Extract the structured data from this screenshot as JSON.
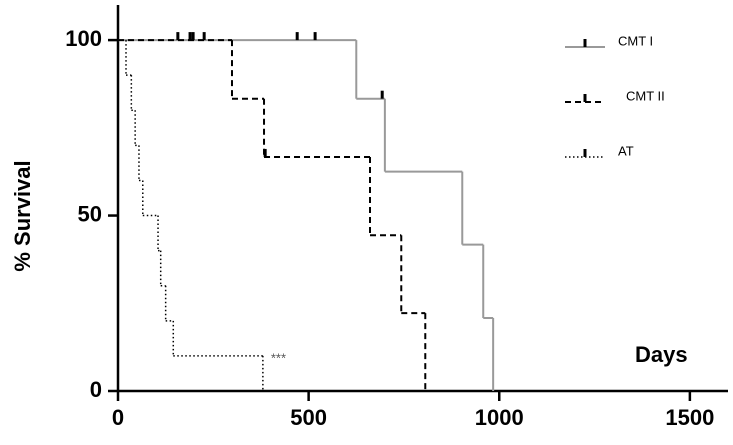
{
  "chart_data": {
    "type": "step",
    "y_label": "% Survival",
    "x_label": "Days",
    "annotation": "***",
    "xlim": [
      0,
      1600
    ],
    "ylim": [
      0,
      110
    ],
    "xticks": [
      0,
      500,
      1000,
      1500
    ],
    "yticks": [
      0,
      50,
      100
    ],
    "series": [
      {
        "name": "CMT I",
        "color": "#999999",
        "dash": "solid",
        "x": [
          0,
          625,
          700,
          903,
          958,
          984
        ],
        "values": [
          100,
          83.3,
          62.5,
          41.7,
          20.8,
          0
        ],
        "censor_x": [
          157,
          189,
          197,
          226,
          470,
          517,
          693
        ],
        "censor_values": [
          100,
          100,
          100,
          100,
          100,
          100,
          83.3
        ]
      },
      {
        "name": "CMT II",
        "color": "#000000",
        "dash": "dashed",
        "x": [
          0,
          299,
          383,
          661,
          743,
          806
        ],
        "values": [
          100,
          83.3,
          66.7,
          44.4,
          22.2,
          0
        ],
        "censor_x": [
          386
        ],
        "censor_values": [
          66.7
        ]
      },
      {
        "name": "AT",
        "color": "#000000",
        "dash": "dotted",
        "x": [
          0,
          21,
          35,
          45,
          55,
          65,
          105,
          112,
          125,
          145,
          380
        ],
        "values": [
          100,
          90,
          80,
          70,
          60,
          50,
          40,
          30,
          20,
          10,
          0
        ],
        "censor_x": [],
        "censor_values": []
      }
    ]
  }
}
